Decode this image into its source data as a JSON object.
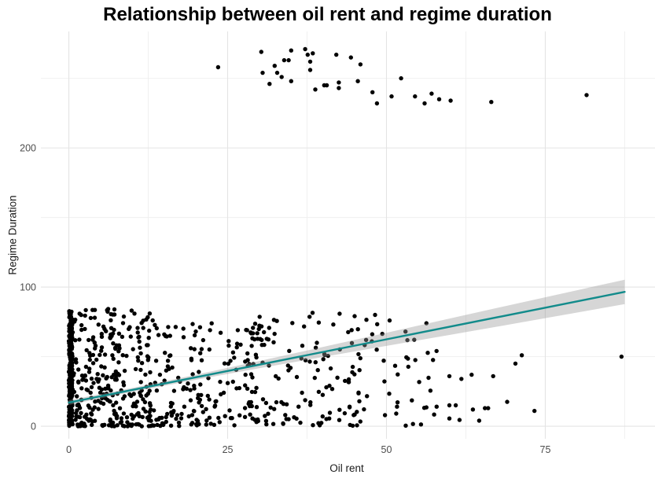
{
  "page": {
    "background": "#ffffff"
  },
  "chart_data": {
    "type": "scatter",
    "title": "Relationship between oil rent and regime duration",
    "xlabel": "Oil rent",
    "ylabel": "Regime Duration",
    "x_ticks": [
      0,
      25,
      50,
      75
    ],
    "x_minor_gridlines": [
      12.5,
      37.5,
      62.5,
      87.5
    ],
    "y_ticks": [
      0,
      100,
      200
    ],
    "y_minor_gridlines": [
      50,
      150,
      250
    ],
    "xlim": [
      -4.4,
      91.9
    ],
    "ylim": [
      -9.0,
      283.7
    ],
    "grid": "on",
    "legend": "none",
    "trend": {
      "type": "linear",
      "intercept": 17,
      "slope": 0.909,
      "x_start": 0,
      "x_end": 87.5,
      "ci_band": {
        "x": [
          0,
          10,
          20,
          30,
          40,
          50,
          60,
          70,
          80,
          87.5
        ],
        "halfwidth": [
          1.7,
          1.4,
          1.8,
          2.6,
          3.6,
          4.7,
          5.9,
          7.0,
          8.0,
          8.8
        ]
      }
    },
    "points_explicit": {
      "top_outliers": [
        [
          23.5,
          258
        ],
        [
          30.3,
          269
        ],
        [
          30.5,
          254
        ],
        [
          31.6,
          246
        ],
        [
          32.4,
          259
        ],
        [
          32.8,
          254
        ],
        [
          33.5,
          251
        ],
        [
          33.9,
          263
        ],
        [
          34.6,
          263
        ],
        [
          35.0,
          248
        ],
        [
          35.0,
          270
        ],
        [
          37.2,
          271
        ],
        [
          37.6,
          267
        ],
        [
          38.0,
          262
        ],
        [
          38.4,
          268
        ],
        [
          38.0,
          256
        ],
        [
          38.8,
          242
        ],
        [
          40.2,
          245
        ],
        [
          40.6,
          245
        ],
        [
          42.1,
          267
        ],
        [
          42.5,
          247
        ],
        [
          42.5,
          243
        ],
        [
          44.4,
          265
        ],
        [
          45.5,
          248
        ],
        [
          45.9,
          260
        ],
        [
          47.8,
          240
        ],
        [
          48.5,
          232
        ],
        [
          50.8,
          237
        ],
        [
          52.3,
          250
        ],
        [
          54.5,
          237
        ],
        [
          56.0,
          232
        ],
        [
          57.1,
          239
        ],
        [
          58.3,
          235
        ],
        [
          60.1,
          234
        ],
        [
          66.5,
          233
        ],
        [
          81.5,
          238
        ]
      ],
      "right_sparse": [
        [
          71.3,
          51
        ],
        [
          70.3,
          45
        ],
        [
          59.9,
          36
        ],
        [
          61.8,
          34
        ],
        [
          63.4,
          37
        ],
        [
          66.8,
          36
        ],
        [
          59.9,
          15
        ],
        [
          60.9,
          15
        ],
        [
          63.6,
          12
        ],
        [
          65.5,
          13
        ],
        [
          66.0,
          13
        ],
        [
          69.0,
          17.5
        ],
        [
          59.9,
          5.6
        ],
        [
          61.5,
          4.5
        ],
        [
          64.6,
          4
        ],
        [
          73.3,
          11
        ],
        [
          87.0,
          50
        ]
      ],
      "other": [
        [
          46.8,
          62
        ],
        [
          48.2,
          80
        ],
        [
          50.5,
          76
        ],
        [
          53.0,
          68
        ]
      ]
    },
    "point_clusters": [
      {
        "name": "zero-bar",
        "n": 230,
        "x": [
          0,
          0.55
        ],
        "xpow": 1.0,
        "y": [
          0,
          83
        ],
        "ypow": 1.0
      },
      {
        "name": "left-dense",
        "n": 310,
        "x": [
          0.3,
          13
        ],
        "xpow": 1.35,
        "y": [
          0,
          84
        ],
        "ypow": 1.75
      },
      {
        "name": "mid-dense",
        "n": 175,
        "x": [
          12,
          30
        ],
        "xpow": 1.0,
        "y": [
          0,
          74
        ],
        "ypow": 1.5
      },
      {
        "name": "mid-right",
        "n": 115,
        "x": [
          28,
          46
        ],
        "xpow": 1.0,
        "y": [
          0,
          80
        ],
        "ypow": 1.35
      },
      {
        "name": "sparse-45",
        "n": 48,
        "x": [
          44,
          58
        ],
        "xpow": 1.0,
        "y": [
          0,
          80
        ],
        "ypow": 1.3
      },
      {
        "name": "upper-band",
        "n": 22,
        "x": [
          1,
          45
        ],
        "xpow": 1.0,
        "y": [
          58,
          85
        ],
        "ypow": 1.0
      }
    ],
    "seed": 42,
    "style": {
      "point_color": "#000000",
      "point_radius": 2.7,
      "trend_color": "#128b8b",
      "trend_width": 2.4,
      "band_color": "#999999",
      "band_opacity": 0.4,
      "grid_major_color": "#e4e4e4",
      "grid_minor_color": "#efefef",
      "tick_label_color": "#4d4d4d",
      "axis_title_color": "#1a1a1a",
      "title_color": "#000000"
    }
  }
}
